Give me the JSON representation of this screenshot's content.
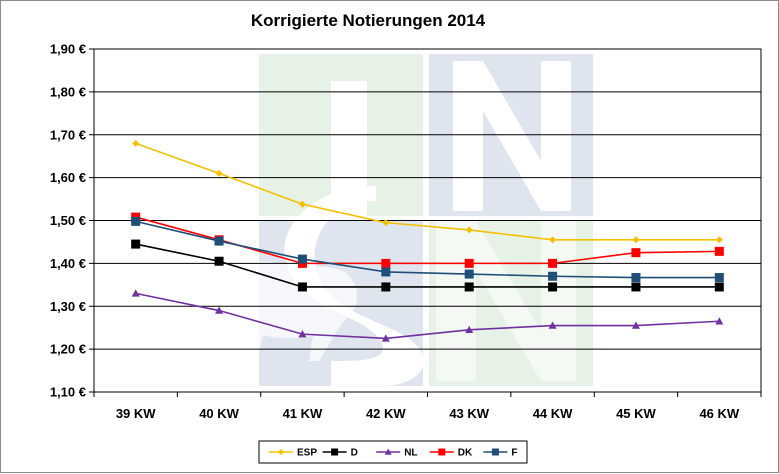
{
  "chart_data": {
    "type": "line",
    "title": "Korrigierte Notierungen 2014",
    "xlabel": "",
    "ylabel": "",
    "categories": [
      "39 KW",
      "40 KW",
      "41 KW",
      "42 KW",
      "43 KW",
      "44 KW",
      "45 KW",
      "46 KW"
    ],
    "ylim": [
      1.1,
      1.9
    ],
    "yticks": [
      "1,10 €",
      "1,20 €",
      "1,30 €",
      "1,40 €",
      "1,50 €",
      "1,60 €",
      "1,70 €",
      "1,80 €",
      "1,90 €"
    ],
    "grid": true,
    "legend_position": "bottom",
    "watermark_text": "ISN",
    "series": [
      {
        "name": "ESP",
        "color": "#f5c000",
        "marker": "diamond",
        "values": [
          1.68,
          1.61,
          1.538,
          1.495,
          1.478,
          1.455,
          1.455,
          1.455
        ]
      },
      {
        "name": "D",
        "color": "#000000",
        "marker": "square",
        "values": [
          1.445,
          1.405,
          1.345,
          1.345,
          1.345,
          1.345,
          1.345,
          1.345
        ]
      },
      {
        "name": "NL",
        "color": "#7030a0",
        "marker": "triangle",
        "values": [
          1.33,
          1.29,
          1.235,
          1.225,
          1.245,
          1.255,
          1.255,
          1.265
        ]
      },
      {
        "name": "DK",
        "color": "#ff0000",
        "marker": "square",
        "values": [
          1.508,
          1.455,
          1.4,
          1.4,
          1.4,
          1.4,
          1.425,
          1.428
        ]
      },
      {
        "name": "F",
        "color": "#1f4e79",
        "marker": "square",
        "values": [
          1.498,
          1.452,
          1.41,
          1.38,
          1.375,
          1.37,
          1.367,
          1.367
        ]
      }
    ]
  }
}
